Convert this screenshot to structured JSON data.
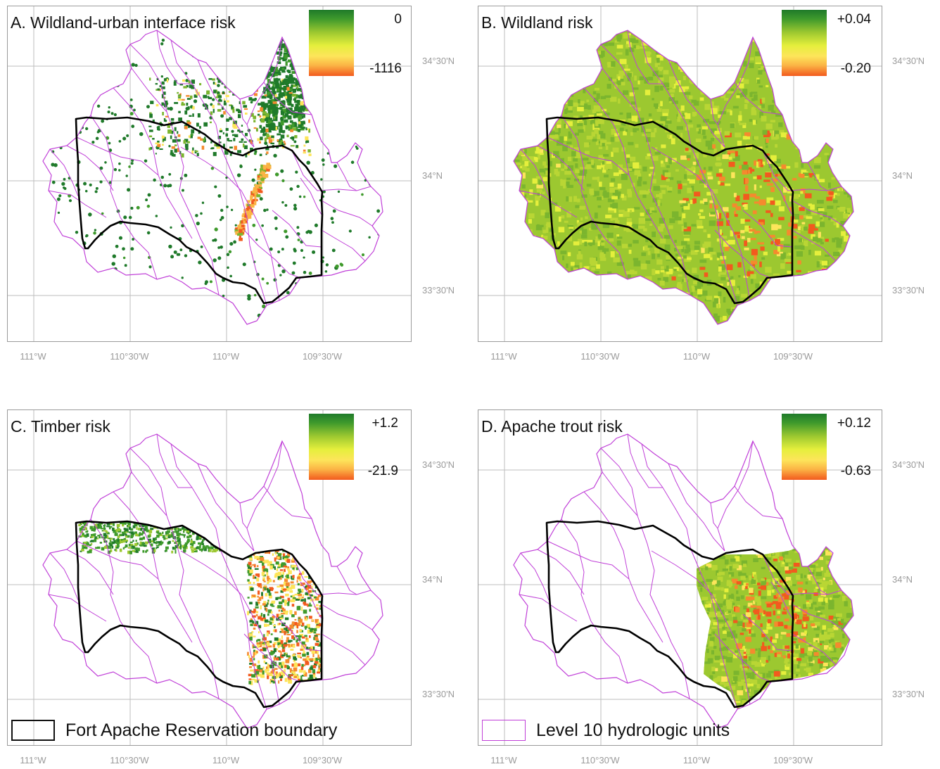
{
  "panels": [
    {
      "id": "A",
      "title": "A. Wildland-urban interface risk",
      "legend_max": "0",
      "legend_min": "-1116",
      "fill": "wui"
    },
    {
      "id": "B",
      "title": "B. Wildland risk",
      "legend_max": "+0.04",
      "legend_min": "-0.20",
      "fill": "wildland"
    },
    {
      "id": "C",
      "title": "C. Timber risk",
      "legend_max": "+1.2",
      "legend_min": "-21.9",
      "fill": "timber"
    },
    {
      "id": "D",
      "title": "D. Apache trout risk",
      "legend_max": "+0.12",
      "legend_min": "-0.63",
      "fill": "trout"
    }
  ],
  "lon_labels": [
    "111°W",
    "110°30'W",
    "110°W",
    "109°30'W"
  ],
  "lat_labels": [
    "34°30'N",
    "34°N",
    "33°30'N"
  ],
  "legend": {
    "reservation": "Fort Apache Reservation boundary",
    "hucs": "Level 10 hydrologic units"
  },
  "colors": {
    "reservation_boundary": "#000000",
    "hydrologic_units": "#c040d8",
    "risk_high": "#f25a1e",
    "risk_mid": "#fde55a",
    "risk_low": "#1f7a2a",
    "graticule": "#bdbdbd"
  }
}
